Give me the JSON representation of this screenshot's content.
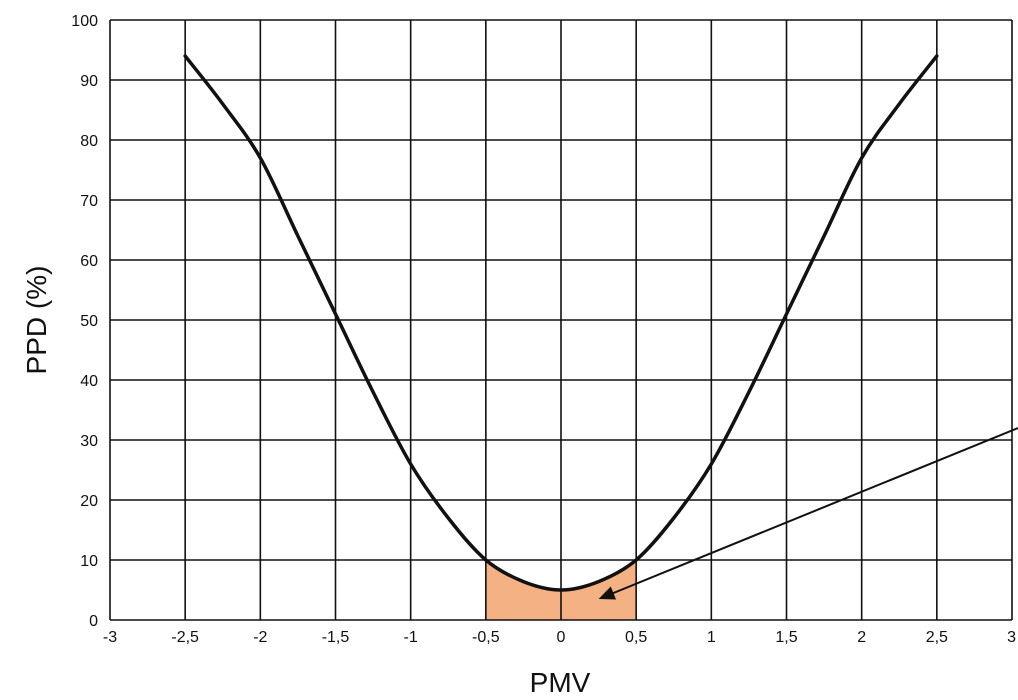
{
  "chart_data": {
    "type": "line",
    "title": "",
    "xlabel": "PMV",
    "ylabel": "PPD (%)",
    "xlim": [
      -3,
      3
    ],
    "ylim": [
      0,
      100
    ],
    "grid": true,
    "x_tick_values": [
      -3,
      -2.5,
      -2,
      -1.5,
      -1,
      -0.5,
      0,
      0.5,
      1,
      1.5,
      2,
      2.5,
      3
    ],
    "x_tick_labels": [
      "-3",
      "-2,5",
      "-2",
      "-1,5",
      "-1",
      "-0,5",
      "0",
      "0,5",
      "1",
      "1,5",
      "2",
      "2,5",
      "3"
    ],
    "y_tick_values": [
      0,
      10,
      20,
      30,
      40,
      50,
      60,
      70,
      80,
      90,
      100
    ],
    "y_tick_labels": [
      "0",
      "10",
      "20",
      "30",
      "40",
      "50",
      "60",
      "70",
      "80",
      "90",
      "100"
    ],
    "series": [
      {
        "x": [
          -2.5,
          -2.25,
          -2,
          -1.75,
          -1.5,
          -1.25,
          -1,
          -0.75,
          -0.5,
          -0.25,
          0,
          0.25,
          0.5,
          0.75,
          1,
          1.25,
          1.5,
          1.75,
          2,
          2.25,
          2.5
        ],
        "values": [
          94,
          86,
          77,
          64,
          51,
          38,
          26,
          17,
          10,
          6.4,
          5,
          6.4,
          10,
          17,
          26,
          38,
          51,
          64,
          77,
          86,
          94
        ],
        "color": "#111111"
      }
    ],
    "shaded_region": {
      "x_range": [
        -0.5,
        0.5
      ],
      "y_top": 10,
      "color": "#f4b183"
    },
    "arrow": {
      "from": [
        3.3,
        32
      ],
      "to": [
        0.25,
        3.5
      ],
      "color": "#111111"
    }
  }
}
